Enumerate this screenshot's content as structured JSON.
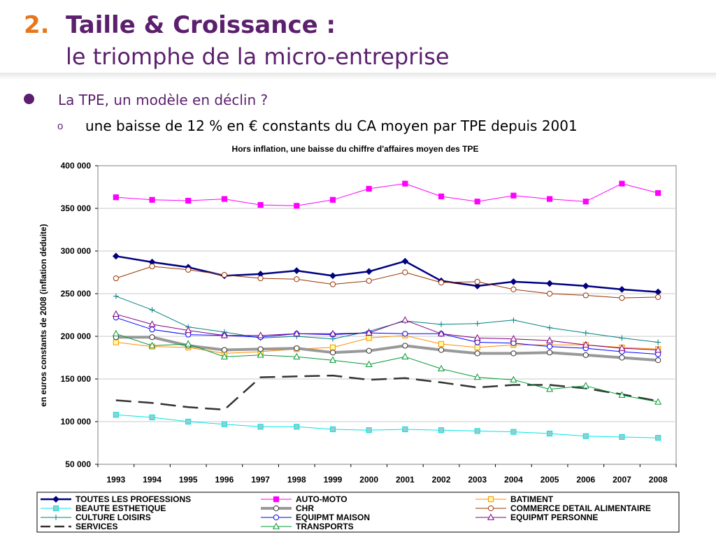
{
  "slide": {
    "number": "2.",
    "title": "Taille & Croissance :",
    "subtitle": "le triomphe de la micro-entreprise",
    "bullet1": "La TPE, un modèle en déclin ?",
    "bullet2_marker": "o",
    "bullet2": "une baisse de 12 % en € constants du CA moyen par TPE depuis 2001"
  },
  "chart_data": {
    "type": "line",
    "title": "Hors inflation, une baisse du chiffre d'affaires moyen des TPE",
    "xlabel": "",
    "ylabel": "en euros constants de 2008 (inflation déduite)",
    "ylim": [
      50000,
      400000
    ],
    "yticks": [
      50000,
      100000,
      150000,
      200000,
      250000,
      300000,
      350000,
      400000
    ],
    "ytick_labels": [
      "50 000",
      "100 000",
      "150 000",
      "200 000",
      "250 000",
      "300 000",
      "350 000",
      "400 000"
    ],
    "categories": [
      "1993",
      "1994",
      "1995",
      "1996",
      "1997",
      "1998",
      "1999",
      "2000",
      "2001",
      "2002",
      "2003",
      "2004",
      "2005",
      "2006",
      "2007",
      "2008"
    ],
    "grid": "horizontal",
    "legend_position": "bottom",
    "series": [
      {
        "name": "TOUTES LES PROFESSIONS",
        "color": "#000080",
        "marker": "diamond",
        "width": 2.5,
        "values": [
          294000,
          287000,
          281000,
          271000,
          273000,
          277000,
          271000,
          276000,
          288000,
          265000,
          259000,
          264000,
          262000,
          259000,
          255000,
          252000
        ]
      },
      {
        "name": "AUTO-MOTO",
        "color": "#ff00ff",
        "marker": "square",
        "width": 1,
        "values": [
          363000,
          360000,
          359000,
          361000,
          354000,
          353000,
          360000,
          373000,
          379000,
          364000,
          358000,
          365000,
          361000,
          358000,
          379000,
          368000
        ]
      },
      {
        "name": "BATIMENT",
        "color": "#ff8c00",
        "marker": "square-open",
        "width": 1,
        "values": [
          193000,
          188000,
          187000,
          180000,
          182000,
          185000,
          187000,
          198000,
          201000,
          191000,
          187000,
          190000,
          190000,
          190000,
          187000,
          185000
        ]
      },
      {
        "name": "BEAUTE ESTHETIQUE",
        "color": "#00e5e5",
        "marker": "square-fill",
        "width": 1,
        "values": [
          108000,
          105000,
          100000,
          97000,
          94000,
          94000,
          91000,
          90000,
          91000,
          90000,
          89000,
          88000,
          86000,
          83000,
          82000,
          81000
        ]
      },
      {
        "name": "CHR",
        "color": "#999999",
        "marker": "circle-open",
        "width": 4,
        "values": [
          199000,
          199000,
          189000,
          184000,
          185000,
          186000,
          181000,
          183000,
          189000,
          184000,
          180000,
          180000,
          181000,
          178000,
          175000,
          172000
        ]
      },
      {
        "name": "COMMERCE DETAIL ALIMENTAIRE",
        "color": "#993300",
        "marker": "circle-open",
        "width": 1,
        "values": [
          268000,
          282000,
          278000,
          272000,
          268000,
          267000,
          261000,
          265000,
          275000,
          263000,
          264000,
          255000,
          250000,
          248000,
          245000,
          246000
        ]
      },
      {
        "name": "CULTURE LOISIRS",
        "color": "#008080",
        "marker": "plus",
        "width": 1,
        "values": [
          247000,
          231000,
          211000,
          205000,
          198000,
          200000,
          197000,
          206000,
          218000,
          214000,
          215000,
          219000,
          210000,
          204000,
          198000,
          193000
        ]
      },
      {
        "name": "EQUIPMT MAISON",
        "color": "#0000ff",
        "marker": "circle-open",
        "width": 1,
        "values": [
          222000,
          208000,
          202000,
          201000,
          199000,
          203000,
          202000,
          204000,
          203000,
          203000,
          193000,
          192000,
          188000,
          186000,
          182000,
          179000
        ]
      },
      {
        "name": "EQUIPMT PERSONNE",
        "color": "#800080",
        "marker": "triangle-open",
        "width": 1,
        "values": [
          226000,
          214000,
          207000,
          201000,
          201000,
          203000,
          203000,
          204000,
          219000,
          203000,
          198000,
          197000,
          195000,
          190000,
          186000,
          184000
        ]
      },
      {
        "name": "SERVICES",
        "color": "#333333",
        "marker": "none",
        "width": 2.5,
        "dash": "22,10",
        "values": [
          125000,
          122000,
          117000,
          114000,
          152000,
          153000,
          154000,
          149000,
          151000,
          146000,
          140000,
          143000,
          143000,
          139000,
          132000,
          124000
        ]
      },
      {
        "name": "TRANSPORTS",
        "color": "#009933",
        "marker": "triangle-open",
        "width": 1,
        "values": [
          203000,
          189000,
          191000,
          176000,
          178000,
          176000,
          172000,
          167000,
          176000,
          162000,
          152000,
          149000,
          138000,
          142000,
          131000,
          123000
        ]
      }
    ]
  }
}
